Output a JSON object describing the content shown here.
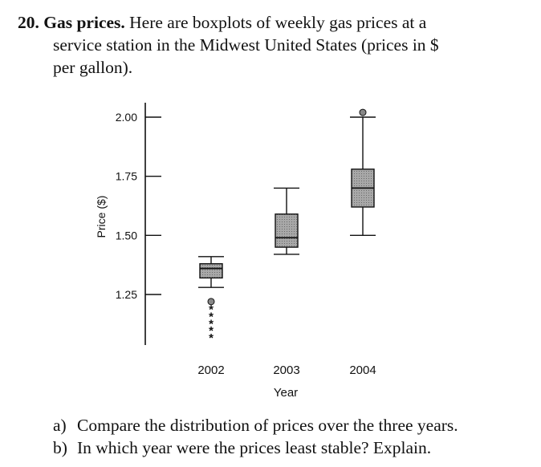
{
  "problem": {
    "number": "20.",
    "title": "Gas prices.",
    "text_line1": " Here are boxplots of weekly gas prices at a",
    "text_line2": "service station in the Midwest United States (prices in $",
    "text_line3": "per gallon)."
  },
  "chart_data": {
    "type": "boxplot",
    "title": "",
    "ylabel": "Price ($)",
    "xlabel": "Year",
    "ylim": [
      1.02,
      2.09
    ],
    "yticks": [
      1.25,
      1.5,
      1.75,
      2.0
    ],
    "ytick_labels": [
      "1.25",
      "1.50",
      "1.75",
      "2.00"
    ],
    "categories": [
      "2002",
      "2003",
      "2004"
    ],
    "boxes": [
      {
        "name": "2002",
        "whisker_low": 1.28,
        "q1": 1.32,
        "median": 1.36,
        "q3": 1.38,
        "whisker_high": 1.41,
        "outliers": [
          1.22
        ],
        "far_outliers": [
          1.19,
          1.16,
          1.13,
          1.1,
          1.07
        ]
      },
      {
        "name": "2003",
        "whisker_low": 1.42,
        "q1": 1.45,
        "median": 1.49,
        "q3": 1.59,
        "whisker_high": 1.7,
        "outliers": [],
        "far_outliers": []
      },
      {
        "name": "2004",
        "whisker_low": 1.5,
        "q1": 1.62,
        "median": 1.7,
        "q3": 1.78,
        "whisker_high": 2.0,
        "outliers": [
          2.02
        ],
        "far_outliers": []
      }
    ]
  },
  "colors": {
    "box_fill": "#9c9c9c",
    "ink": "#111111"
  },
  "questions": [
    {
      "label": "a)",
      "text": "Compare the distribution of prices over the three years."
    },
    {
      "label": "b)",
      "text": "In which year were the prices least stable? Explain."
    }
  ]
}
